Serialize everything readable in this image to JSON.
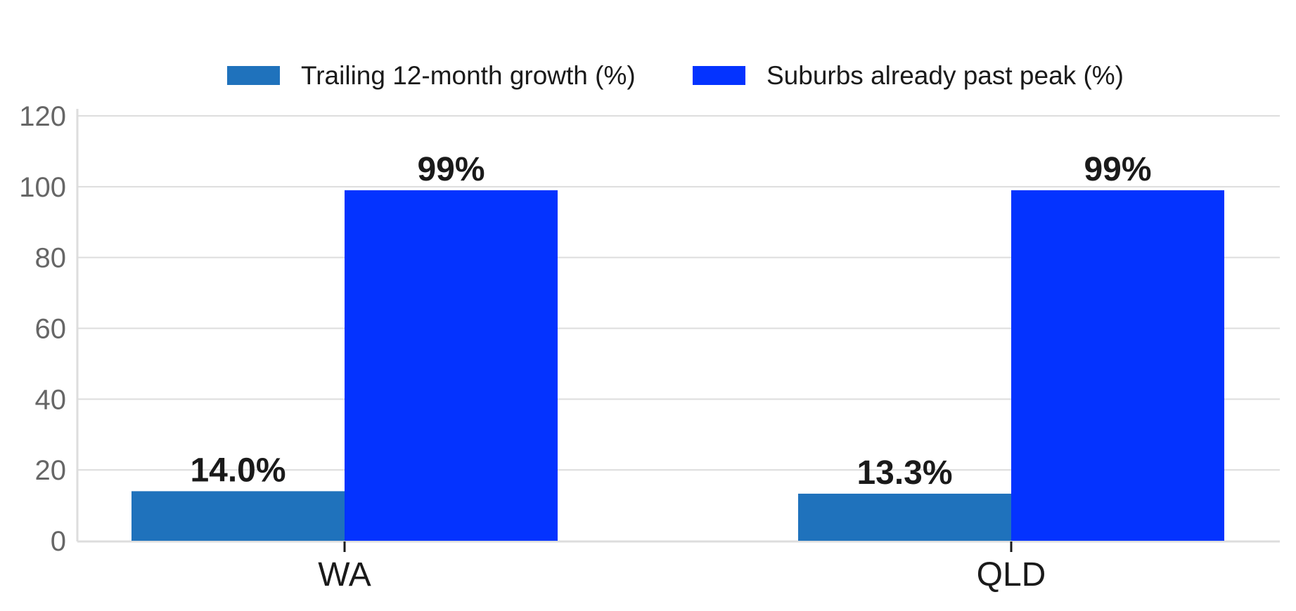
{
  "chart_data": {
    "type": "bar",
    "categories": [
      "WA",
      "QLD"
    ],
    "series": [
      {
        "name": "Trailing 12-month growth (%)",
        "color": "#1f72bc",
        "values": [
          14.0,
          13.3
        ],
        "labels": [
          "14.0%",
          "13.3%"
        ]
      },
      {
        "name": "Suburbs already past peak (%)",
        "color": "#0433ff",
        "values": [
          99,
          99
        ],
        "labels": [
          "99%",
          "99%"
        ]
      }
    ],
    "ylim": [
      0,
      120
    ],
    "yticks": [
      0,
      20,
      40,
      60,
      80,
      100,
      120
    ],
    "ytick_labels": [
      "0",
      "20",
      "40",
      "60",
      "80",
      "100",
      "120"
    ],
    "grid": true,
    "legend_position": "top-center",
    "title": "",
    "xlabel": "",
    "ylabel": ""
  }
}
